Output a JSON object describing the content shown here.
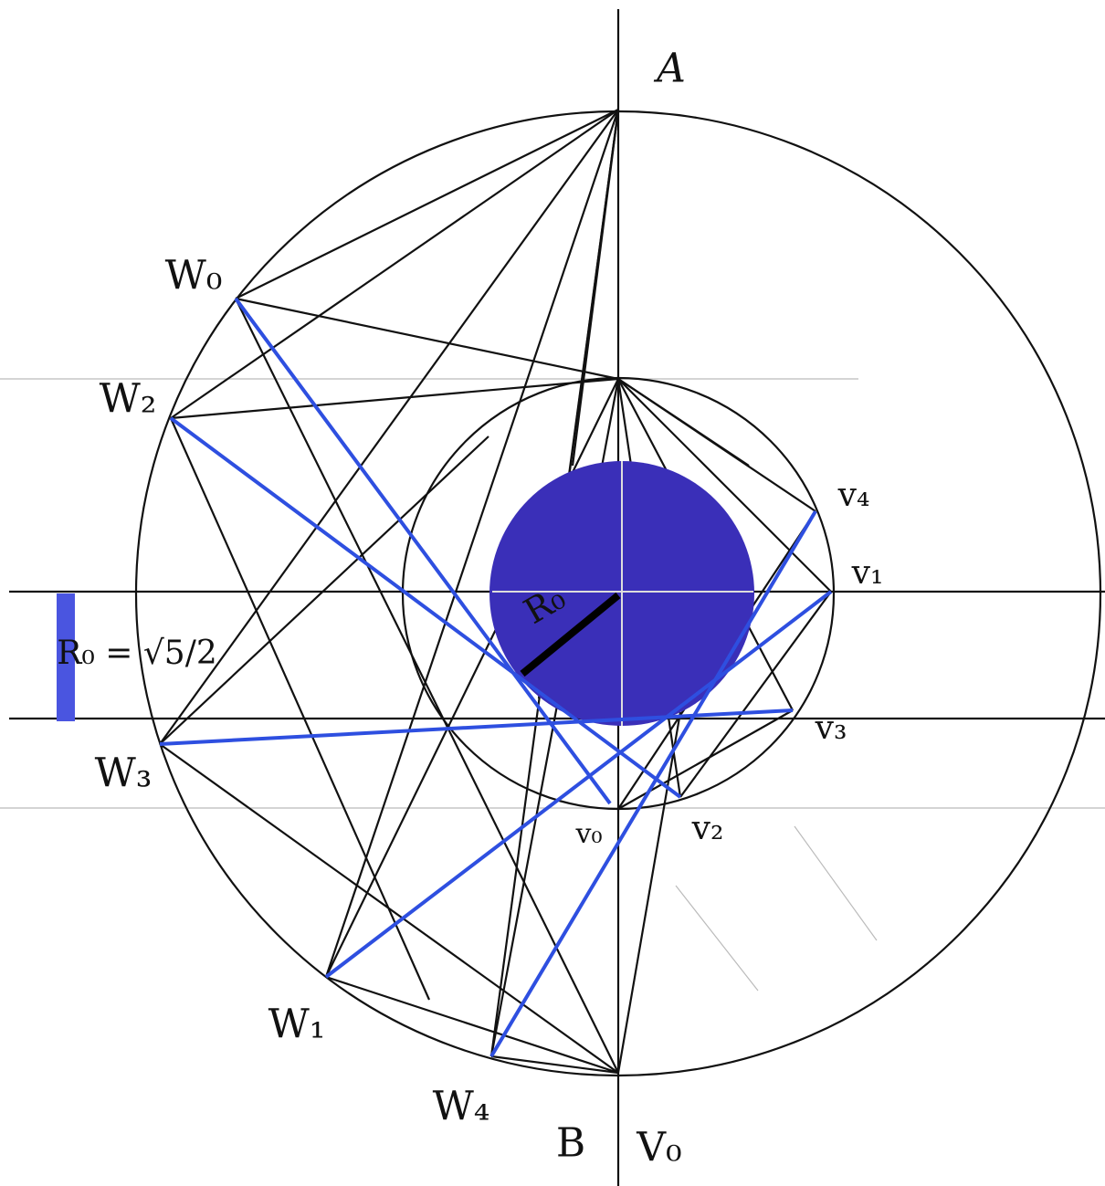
{
  "labels": {
    "a": "A",
    "w0": "W₀",
    "w2": "W₂",
    "w3": "W₃",
    "w1": "W₁",
    "w4": "W₄",
    "b": "B",
    "v0_big": "V₀",
    "v4": "v₄",
    "v1": "v₁",
    "v3": "v₃",
    "v2": "v₂",
    "v0": "v₀",
    "r0": "R₀",
    "formula": "R₀ = √5/2"
  }
}
